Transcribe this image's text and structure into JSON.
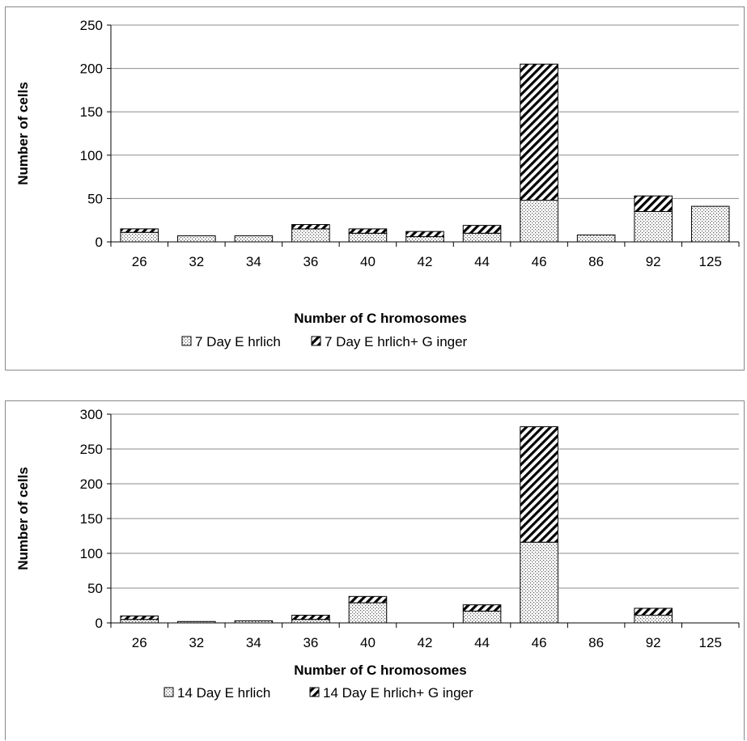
{
  "chart_data": [
    {
      "type": "bar",
      "stacked": true,
      "categories": [
        "26",
        "32",
        "34",
        "36",
        "40",
        "42",
        "44",
        "46",
        "86",
        "92",
        "125"
      ],
      "series": [
        {
          "name": "7 Day E hrlich",
          "pattern": "dots",
          "values": [
            11,
            7,
            7,
            15,
            10,
            6,
            10,
            48,
            8,
            35,
            41
          ]
        },
        {
          "name": "7 Day E hrlich+ G inger",
          "pattern": "hatch",
          "values": [
            4,
            0,
            0,
            5,
            5,
            6,
            9,
            157,
            0,
            18,
            0
          ]
        }
      ],
      "xlabel": "Number of C hromosomes",
      "ylabel": "Number of cells",
      "ylim": [
        0,
        250
      ],
      "yticks": [
        0,
        50,
        100,
        150,
        200,
        250
      ],
      "grid": true,
      "legend": "bottom"
    },
    {
      "type": "bar",
      "stacked": true,
      "categories": [
        "26",
        "32",
        "34",
        "36",
        "40",
        "42",
        "44",
        "46",
        "86",
        "92",
        "125"
      ],
      "series": [
        {
          "name": "14 Day E hrlich",
          "pattern": "dots",
          "values": [
            5,
            2,
            3,
            5,
            29,
            0,
            17,
            116,
            0,
            11,
            0
          ]
        },
        {
          "name": "14 Day E hrlich+ G inger",
          "pattern": "hatch",
          "values": [
            5,
            0,
            0,
            6,
            9,
            0,
            9,
            166,
            0,
            10,
            0
          ]
        }
      ],
      "xlabel": "Number of C hromosomes",
      "ylabel": "Number of cells",
      "ylim": [
        0,
        300
      ],
      "yticks": [
        0,
        50,
        100,
        150,
        200,
        250,
        300
      ],
      "grid": true,
      "legend": "bottom"
    }
  ]
}
